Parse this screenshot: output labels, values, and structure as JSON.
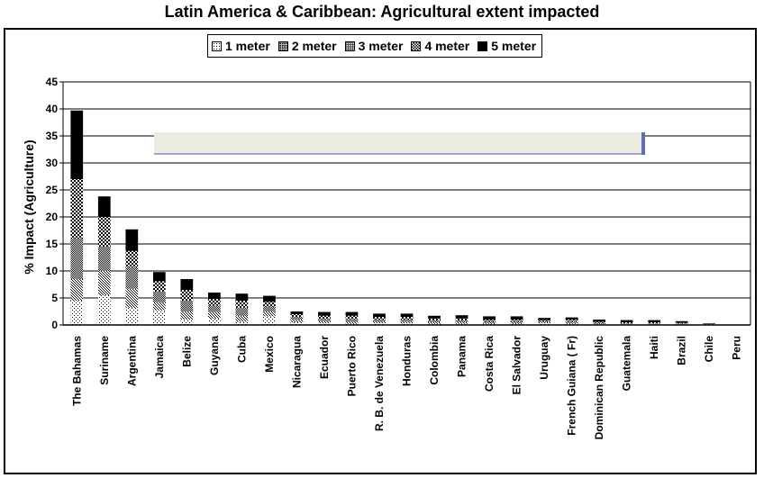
{
  "chart_data": {
    "type": "bar",
    "stacked": true,
    "title": "Latin America & Caribbean: Agricultural extent impacted",
    "xlabel": "",
    "ylabel": "% Impact (Agriculture)",
    "ylim": [
      0,
      45
    ],
    "yticks": [
      0,
      5,
      10,
      15,
      20,
      25,
      30,
      35,
      40,
      45
    ],
    "grid": true,
    "legend_position": "top",
    "categories": [
      "The Bahamas",
      "Suriname",
      "Argentina",
      "Jamaica",
      "Belize",
      "Guyana",
      "Cuba",
      "Mexico",
      "Nicaragua",
      "Ecuador",
      "Puerto Rico",
      "R. B. de Venezuela",
      "Honduras",
      "Colombia",
      "Panama",
      "Costa Rica",
      "El Salvador",
      "Uruguay",
      "French Guiana ( Fr)",
      "Dominican Republic",
      "Guatemala",
      "Haiti",
      "Brazil",
      "Chile",
      "Peru"
    ],
    "series": [
      {
        "name": "1 meter",
        "pattern": "dots-light",
        "values": [
          4.5,
          5.5,
          3.2,
          2.7,
          1.0,
          1.2,
          0.6,
          1.6,
          0.5,
          0.3,
          0.2,
          0.3,
          0.3,
          0.2,
          0.2,
          0.2,
          0.2,
          0.3,
          0.2,
          0.1,
          0.1,
          0.1,
          0.1,
          0.05,
          0.0
        ]
      },
      {
        "name": "2 meter",
        "pattern": "dots-medium",
        "values": [
          4.0,
          4.5,
          3.5,
          1.5,
          1.5,
          1.2,
          1.1,
          0.9,
          0.5,
          0.4,
          0.4,
          0.3,
          0.3,
          0.3,
          0.3,
          0.2,
          0.2,
          0.2,
          0.2,
          0.1,
          0.1,
          0.1,
          0.1,
          0.05,
          0.0
        ]
      },
      {
        "name": "3 meter",
        "pattern": "dots-dense",
        "values": [
          7.5,
          4.5,
          4.0,
          2.0,
          2.0,
          1.2,
          1.5,
          0.9,
          0.5,
          0.4,
          0.5,
          0.4,
          0.4,
          0.3,
          0.3,
          0.3,
          0.3,
          0.2,
          0.3,
          0.2,
          0.1,
          0.1,
          0.1,
          0.05,
          0.0
        ]
      },
      {
        "name": "4 meter",
        "pattern": "checker",
        "values": [
          11.0,
          5.5,
          3.0,
          1.9,
          2.0,
          1.2,
          1.3,
          0.9,
          0.5,
          0.6,
          0.6,
          0.5,
          0.5,
          0.4,
          0.4,
          0.3,
          0.3,
          0.2,
          0.3,
          0.2,
          0.2,
          0.2,
          0.1,
          0.05,
          0.0
        ]
      },
      {
        "name": "5 meter",
        "pattern": "solid",
        "values": [
          12.7,
          3.8,
          4.0,
          1.7,
          2.0,
          1.2,
          1.3,
          1.1,
          0.5,
          0.7,
          0.7,
          0.6,
          0.6,
          0.5,
          0.6,
          0.6,
          0.6,
          0.4,
          0.4,
          0.4,
          0.4,
          0.4,
          0.3,
          0.1,
          0.05
        ]
      }
    ]
  },
  "colors": {
    "frame": "#000000",
    "annotation_box": "#ecebdf",
    "annotation_edge": "#5b6fb8"
  }
}
